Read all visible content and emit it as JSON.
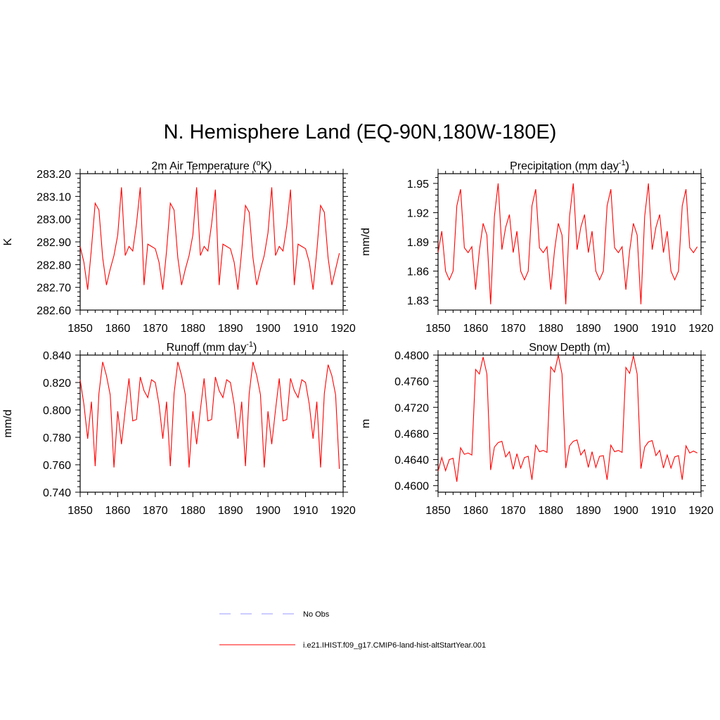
{
  "title": "N. Hemisphere Land (EQ-90N,180W-180E)",
  "legend": [
    {
      "label": "No Obs",
      "color": "#9999ff",
      "style": "dashed"
    },
    {
      "label": "i.e21.IHIST.f09_g17.CMIP6-land-hist-altStartYear.001",
      "color": "#ff0000",
      "style": "solid"
    }
  ],
  "chart_data": [
    {
      "type": "line",
      "title": "2m Air Temperature (",
      "title_sup": "o",
      "title_tail": "K)",
      "ylabel": "K",
      "xlim": [
        1850,
        1920
      ],
      "ylim": [
        282.6,
        283.2
      ],
      "xticks": [
        1850,
        1860,
        1870,
        1880,
        1890,
        1900,
        1910,
        1920
      ],
      "yticks": [
        282.6,
        282.7,
        282.8,
        282.9,
        283.0,
        283.1,
        283.2
      ],
      "ytick_labels": [
        "282.60",
        "282.70",
        "282.80",
        "282.90",
        "283.00",
        "283.10",
        "283.20"
      ],
      "series": [
        {
          "color": "#ff0000",
          "x": [
            1850,
            1851,
            1852,
            1853,
            1854,
            1855,
            1856,
            1857,
            1858,
            1859,
            1860,
            1861,
            1862,
            1863,
            1864,
            1865,
            1866,
            1867,
            1868,
            1869,
            1870,
            1871,
            1872,
            1873,
            1874,
            1875,
            1876,
            1877,
            1878,
            1879,
            1880,
            1881,
            1882,
            1883,
            1884,
            1885,
            1886,
            1887,
            1888,
            1889,
            1890,
            1891,
            1892,
            1893,
            1894,
            1895,
            1896,
            1897,
            1898,
            1899,
            1900,
            1901,
            1902,
            1903,
            1904,
            1905,
            1906,
            1907,
            1908,
            1909,
            1910,
            1911,
            1912,
            1913,
            1914,
            1915,
            1916,
            1917,
            1918,
            1919
          ],
          "values": [
            282.88,
            282.81,
            282.69,
            282.87,
            283.07,
            283.04,
            282.83,
            282.71,
            282.78,
            282.84,
            282.93,
            283.14,
            282.84,
            282.88,
            282.86,
            282.98,
            283.14,
            282.71,
            282.89,
            282.88,
            282.87,
            282.81,
            282.69,
            282.86,
            283.07,
            283.04,
            282.83,
            282.71,
            282.78,
            282.84,
            282.93,
            283.14,
            282.84,
            282.88,
            282.86,
            282.98,
            283.13,
            282.71,
            282.89,
            282.88,
            282.87,
            282.81,
            282.69,
            282.86,
            283.06,
            283.03,
            282.83,
            282.71,
            282.78,
            282.84,
            282.94,
            283.14,
            282.84,
            282.88,
            282.86,
            282.97,
            283.13,
            282.71,
            282.89,
            282.88,
            282.87,
            282.81,
            282.69,
            282.86,
            283.06,
            283.03,
            282.83,
            282.71,
            282.78,
            282.85
          ]
        }
      ]
    },
    {
      "type": "line",
      "title": "Precipitation (mm day",
      "title_sup": "-1",
      "title_tail": ")",
      "ylabel": "mm/d",
      "xlim": [
        1850,
        1920
      ],
      "ylim": [
        1.82,
        1.96
      ],
      "xticks": [
        1850,
        1860,
        1870,
        1880,
        1890,
        1900,
        1910,
        1920
      ],
      "yticks": [
        1.83,
        1.86,
        1.89,
        1.92,
        1.95
      ],
      "ytick_labels": [
        "1.83",
        "1.86",
        "1.89",
        "1.92",
        "1.95"
      ],
      "series": [
        {
          "color": "#ff0000",
          "x": [
            1850,
            1851,
            1852,
            1853,
            1854,
            1855,
            1856,
            1857,
            1858,
            1859,
            1860,
            1861,
            1862,
            1863,
            1864,
            1865,
            1866,
            1867,
            1868,
            1869,
            1870,
            1871,
            1872,
            1873,
            1874,
            1875,
            1876,
            1877,
            1878,
            1879,
            1880,
            1881,
            1882,
            1883,
            1884,
            1885,
            1886,
            1887,
            1888,
            1889,
            1890,
            1891,
            1892,
            1893,
            1894,
            1895,
            1896,
            1897,
            1898,
            1899,
            1900,
            1901,
            1902,
            1903,
            1904,
            1905,
            1906,
            1907,
            1908,
            1909,
            1910,
            1911,
            1912,
            1913,
            1914,
            1915,
            1916,
            1917,
            1918,
            1919
          ],
          "values": [
            1.879,
            1.901,
            1.86,
            1.851,
            1.86,
            1.927,
            1.944,
            1.884,
            1.879,
            1.885,
            1.841,
            1.881,
            1.909,
            1.897,
            1.826,
            1.916,
            1.95,
            1.882,
            1.905,
            1.918,
            1.879,
            1.901,
            1.86,
            1.851,
            1.86,
            1.927,
            1.944,
            1.884,
            1.879,
            1.885,
            1.841,
            1.881,
            1.909,
            1.897,
            1.826,
            1.916,
            1.95,
            1.882,
            1.905,
            1.918,
            1.879,
            1.901,
            1.86,
            1.851,
            1.86,
            1.927,
            1.944,
            1.884,
            1.879,
            1.885,
            1.841,
            1.881,
            1.909,
            1.897,
            1.826,
            1.916,
            1.95,
            1.882,
            1.905,
            1.918,
            1.879,
            1.901,
            1.86,
            1.851,
            1.86,
            1.927,
            1.944,
            1.884,
            1.879,
            1.885
          ]
        }
      ]
    },
    {
      "type": "line",
      "title": "Runoff (mm day",
      "title_sup": "-1",
      "title_tail": ")",
      "ylabel": "mm/d",
      "xlim": [
        1850,
        1920
      ],
      "ylim": [
        0.74,
        0.84
      ],
      "xticks": [
        1850,
        1860,
        1870,
        1880,
        1890,
        1900,
        1910,
        1920
      ],
      "yticks": [
        0.74,
        0.76,
        0.78,
        0.8,
        0.82,
        0.84
      ],
      "ytick_labels": [
        "0.740",
        "0.760",
        "0.780",
        "0.800",
        "0.820",
        "0.840"
      ],
      "series": [
        {
          "color": "#ff0000",
          "x": [
            1850,
            1851,
            1852,
            1853,
            1854,
            1855,
            1856,
            1857,
            1858,
            1859,
            1860,
            1861,
            1862,
            1863,
            1864,
            1865,
            1866,
            1867,
            1868,
            1869,
            1870,
            1871,
            1872,
            1873,
            1874,
            1875,
            1876,
            1877,
            1878,
            1879,
            1880,
            1881,
            1882,
            1883,
            1884,
            1885,
            1886,
            1887,
            1888,
            1889,
            1890,
            1891,
            1892,
            1893,
            1894,
            1895,
            1896,
            1897,
            1898,
            1899,
            1900,
            1901,
            1902,
            1903,
            1904,
            1905,
            1906,
            1907,
            1908,
            1909,
            1910,
            1911,
            1912,
            1913,
            1914,
            1915,
            1916,
            1917,
            1918,
            1919
          ],
          "values": [
            0.822,
            0.804,
            0.779,
            0.806,
            0.759,
            0.812,
            0.835,
            0.825,
            0.811,
            0.758,
            0.799,
            0.775,
            0.8,
            0.823,
            0.792,
            0.793,
            0.824,
            0.814,
            0.809,
            0.822,
            0.82,
            0.804,
            0.779,
            0.806,
            0.759,
            0.812,
            0.835,
            0.825,
            0.811,
            0.758,
            0.799,
            0.775,
            0.8,
            0.823,
            0.792,
            0.793,
            0.824,
            0.814,
            0.809,
            0.822,
            0.82,
            0.804,
            0.779,
            0.806,
            0.759,
            0.812,
            0.835,
            0.825,
            0.811,
            0.758,
            0.799,
            0.775,
            0.8,
            0.823,
            0.792,
            0.793,
            0.823,
            0.814,
            0.809,
            0.822,
            0.82,
            0.804,
            0.779,
            0.806,
            0.758,
            0.812,
            0.833,
            0.825,
            0.811,
            0.757
          ]
        }
      ]
    },
    {
      "type": "line",
      "title": "Snow Depth (m)",
      "title_sup": "",
      "title_tail": "",
      "ylabel": "m",
      "xlim": [
        1850,
        1920
      ],
      "ylim": [
        0.459,
        0.48
      ],
      "xticks": [
        1850,
        1860,
        1870,
        1880,
        1890,
        1900,
        1910,
        1920
      ],
      "yticks": [
        0.46,
        0.464,
        0.468,
        0.472,
        0.476,
        0.48
      ],
      "ytick_labels": [
        "0.4600",
        "0.4640",
        "0.4680",
        "0.4720",
        "0.4760",
        "0.4800"
      ],
      "series": [
        {
          "color": "#ff0000",
          "x": [
            1850,
            1851,
            1852,
            1853,
            1854,
            1855,
            1856,
            1857,
            1858,
            1859,
            1860,
            1861,
            1862,
            1863,
            1864,
            1865,
            1866,
            1867,
            1868,
            1869,
            1870,
            1871,
            1872,
            1873,
            1874,
            1875,
            1876,
            1877,
            1878,
            1879,
            1880,
            1881,
            1882,
            1883,
            1884,
            1885,
            1886,
            1887,
            1888,
            1889,
            1890,
            1891,
            1892,
            1893,
            1894,
            1895,
            1896,
            1897,
            1898,
            1899,
            1900,
            1901,
            1902,
            1903,
            1904,
            1905,
            1906,
            1907,
            1908,
            1909,
            1910,
            1911,
            1912,
            1913,
            1914,
            1915,
            1916,
            1917,
            1918,
            1919
          ],
          "values": [
            0.4622,
            0.4643,
            0.4623,
            0.464,
            0.4642,
            0.4606,
            0.4658,
            0.4648,
            0.465,
            0.4647,
            0.4778,
            0.4771,
            0.4797,
            0.4771,
            0.4624,
            0.4659,
            0.4666,
            0.4668,
            0.4644,
            0.4652,
            0.4625,
            0.4649,
            0.4627,
            0.4643,
            0.4645,
            0.4609,
            0.4662,
            0.4652,
            0.4654,
            0.4651,
            0.4782,
            0.4774,
            0.48,
            0.4771,
            0.4627,
            0.4661,
            0.4668,
            0.467,
            0.4647,
            0.4655,
            0.4628,
            0.4652,
            0.4628,
            0.4645,
            0.4646,
            0.4609,
            0.4662,
            0.4652,
            0.4654,
            0.4651,
            0.4781,
            0.4772,
            0.4799,
            0.4771,
            0.4626,
            0.4659,
            0.4667,
            0.4669,
            0.4646,
            0.4654,
            0.4627,
            0.4647,
            0.4627,
            0.4644,
            0.4646,
            0.4609,
            0.4661,
            0.465,
            0.4653,
            0.465
          ]
        }
      ]
    }
  ]
}
